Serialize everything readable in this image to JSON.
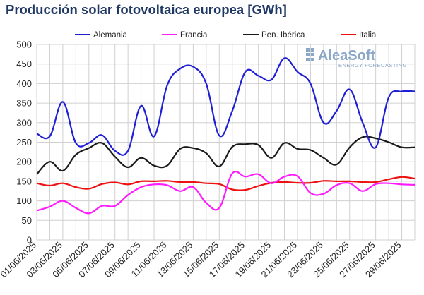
{
  "chart_data": {
    "type": "line",
    "title": "Producción solar fotovoltaica europea [GWh]",
    "ylim": [
      0,
      500
    ],
    "yticks": [
      0,
      50,
      100,
      150,
      200,
      250,
      300,
      350,
      400,
      450,
      500
    ],
    "legend_position": "top",
    "grid": true,
    "x": [
      "01/06/2025",
      "02/06/2025",
      "03/06/2025",
      "04/06/2025",
      "05/06/2025",
      "06/06/2025",
      "07/06/2025",
      "08/06/2025",
      "09/06/2025",
      "10/06/2025",
      "11/06/2025",
      "12/06/2025",
      "13/06/2025",
      "14/06/2025",
      "15/06/2025",
      "16/06/2025",
      "17/06/2025",
      "18/06/2025",
      "19/06/2025",
      "20/06/2025",
      "21/06/2025",
      "22/06/2025",
      "23/06/2025",
      "24/06/2025",
      "25/06/2025",
      "26/06/2025",
      "27/06/2025",
      "28/06/2025",
      "29/06/2025",
      "30/06/2025"
    ],
    "xtick_labels": [
      "01/06/2025",
      "03/06/2025",
      "05/06/2025",
      "07/06/2025",
      "09/06/2025",
      "11/06/2025",
      "13/06/2025",
      "15/06/2025",
      "17/06/2025",
      "19/06/2025",
      "21/06/2025",
      "23/06/2025",
      "25/06/2025",
      "27/06/2025",
      "29/06/2025"
    ],
    "series": [
      {
        "name": "Alemania",
        "color": "#1f1fd6",
        "values": [
          272,
          265,
          353,
          248,
          248,
          268,
          228,
          228,
          343,
          265,
          395,
          438,
          443,
          400,
          267,
          330,
          430,
          420,
          410,
          465,
          430,
          400,
          300,
          330,
          385,
          300,
          237,
          365,
          380,
          380
        ]
      },
      {
        "name": "Francia",
        "color": "#ff1aff",
        "values": [
          75,
          85,
          100,
          82,
          68,
          87,
          87,
          115,
          135,
          142,
          140,
          125,
          135,
          95,
          82,
          170,
          162,
          168,
          145,
          162,
          163,
          120,
          118,
          140,
          145,
          125,
          143,
          145,
          142,
          141
        ]
      },
      {
        "name": "Pen. Ibérica",
        "color": "#1a1a1a",
        "values": [
          168,
          200,
          177,
          218,
          235,
          248,
          213,
          186,
          210,
          190,
          190,
          233,
          235,
          222,
          188,
          238,
          245,
          243,
          210,
          248,
          233,
          230,
          210,
          193,
          237,
          263,
          260,
          250,
          237,
          237
        ]
      },
      {
        "name": "Italia",
        "color": "#ee1111",
        "values": [
          145,
          139,
          145,
          135,
          131,
          143,
          147,
          142,
          150,
          150,
          151,
          148,
          148,
          145,
          143,
          129,
          128,
          138,
          146,
          148,
          146,
          146,
          151,
          150,
          150,
          148,
          148,
          155,
          161,
          157
        ]
      }
    ]
  },
  "logo": {
    "name": "AleaSoft",
    "tagline": "ENERGY FORECASTING"
  }
}
